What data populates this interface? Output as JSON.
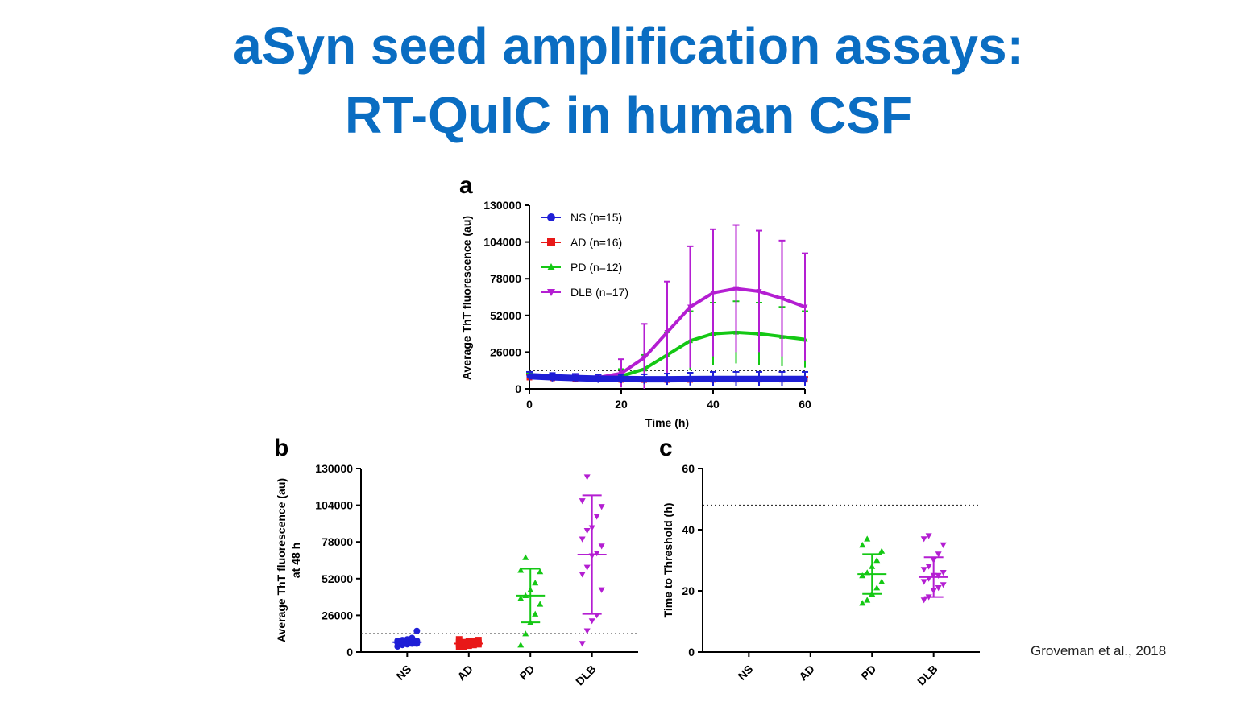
{
  "slide": {
    "title_line1": "aSyn seed amplification assays:",
    "title_line2": "RT-QuIC in human CSF",
    "citation": "Groveman et al., 2018"
  },
  "colors": {
    "NS": "#1f1fd6",
    "AD": "#e81818",
    "PD": "#14c814",
    "DLB": "#b41ed2",
    "title": "#0a6dc2"
  },
  "chart_data": [
    {
      "panel": "a",
      "type": "line",
      "title": "",
      "xlabel": "Time (h)",
      "ylabel": "Average ThT fluorescence (au)",
      "xlim": [
        0,
        60
      ],
      "ylim": [
        0,
        130000
      ],
      "xticks": [
        "0",
        "20",
        "40",
        "60"
      ],
      "yticks": [
        "0",
        "26000",
        "52000",
        "78000",
        "104000",
        "130000"
      ],
      "threshold": 13000,
      "x": [
        0,
        5,
        10,
        15,
        20,
        25,
        30,
        35,
        40,
        45,
        50,
        55,
        60
      ],
      "series": [
        {
          "name": "NS (n=15)",
          "key": "NS",
          "values": [
            9000,
            8200,
            7600,
            7200,
            7000,
            6800,
            6800,
            6900,
            7000,
            7000,
            7000,
            7000,
            7000
          ],
          "err": [
            3000,
            3000,
            3000,
            3000,
            3000,
            3500,
            4000,
            4500,
            5000,
            5000,
            5000,
            5000,
            5000
          ]
        },
        {
          "name": "AD (n=16)",
          "key": "AD",
          "values": [
            8000,
            7500,
            7000,
            6600,
            6300,
            6200,
            6200,
            6300,
            6400,
            6500,
            6500,
            6500,
            6500
          ],
          "err": [
            2000,
            2000,
            2000,
            2000,
            2000,
            2000,
            2000,
            2000,
            2000,
            2000,
            2000,
            2000,
            2000
          ]
        },
        {
          "name": "PD (n=12)",
          "key": "PD",
          "values": [
            9000,
            8500,
            8000,
            8000,
            9000,
            14000,
            24000,
            34000,
            39000,
            40000,
            39000,
            37000,
            35000
          ],
          "err": [
            2000,
            2000,
            2000,
            2000,
            5000,
            10000,
            16000,
            21000,
            22000,
            22000,
            22000,
            21000,
            20000
          ]
        },
        {
          "name": "DLB (n=17)",
          "key": "DLB",
          "values": [
            8000,
            8000,
            8000,
            8000,
            11000,
            22000,
            40000,
            58000,
            68000,
            71000,
            69000,
            64000,
            58000
          ],
          "err": [
            2000,
            2000,
            2000,
            2000,
            10000,
            24000,
            36000,
            43000,
            45000,
            45000,
            43000,
            41000,
            38000
          ]
        }
      ]
    },
    {
      "panel": "b",
      "type": "scatter",
      "xlabel": "",
      "ylabel": "Average ThT fluorescence (au) at 48 h",
      "ylabel_line1": "Average ThT fluorescence (au)",
      "ylabel_line2": "at 48 h",
      "ylim": [
        0,
        130000
      ],
      "yticks": [
        "0",
        "26000",
        "52000",
        "78000",
        "104000",
        "130000"
      ],
      "categories": [
        "NS",
        "AD",
        "PD",
        "DLB"
      ],
      "threshold": 13000,
      "groups": [
        {
          "name": "NS",
          "mean": 7000,
          "sd": 2500,
          "points": [
            4000,
            5000,
            5500,
            6000,
            6000,
            6500,
            7000,
            7000,
            7500,
            8000,
            8000,
            8500,
            9000,
            10000,
            15000
          ]
        },
        {
          "name": "AD",
          "mean": 6000,
          "sd": 2000,
          "points": [
            3500,
            4000,
            4500,
            5000,
            5500,
            5500,
            6000,
            6000,
            6500,
            6500,
            7000,
            7000,
            7500,
            8000,
            8500,
            9000
          ]
        },
        {
          "name": "PD",
          "mean": 40000,
          "sd": 19000,
          "points": [
            5000,
            13000,
            21000,
            27000,
            34000,
            38000,
            40000,
            44000,
            49000,
            57000,
            58000,
            67000
          ]
        },
        {
          "name": "DLB",
          "mean": 69000,
          "sd": 42000,
          "points": [
            6000,
            15000,
            22000,
            26000,
            44000,
            55000,
            60000,
            68000,
            70000,
            75000,
            80000,
            86000,
            88000,
            96000,
            103000,
            107000,
            124000
          ]
        }
      ]
    },
    {
      "panel": "c",
      "type": "scatter",
      "xlabel": "",
      "ylabel": "Time to Threshold (h)",
      "ylim": [
        0,
        60
      ],
      "yticks": [
        "0",
        "20",
        "40",
        "60"
      ],
      "categories": [
        "NS",
        "AD",
        "PD",
        "DLB"
      ],
      "threshold": 48,
      "groups": [
        {
          "name": "NS",
          "mean": null,
          "sd": null,
          "points": []
        },
        {
          "name": "AD",
          "mean": null,
          "sd": null,
          "points": []
        },
        {
          "name": "PD",
          "mean": 25.5,
          "sd": 6.5,
          "points": [
            16,
            17,
            19,
            21,
            23,
            25,
            26,
            28,
            30,
            33,
            35,
            37
          ]
        },
        {
          "name": "DLB",
          "mean": 24.5,
          "sd": 6.5,
          "points": [
            17,
            18,
            20,
            21,
            22,
            23,
            24,
            25,
            25,
            26,
            27,
            28,
            30,
            32,
            35,
            37,
            38
          ]
        }
      ]
    }
  ]
}
